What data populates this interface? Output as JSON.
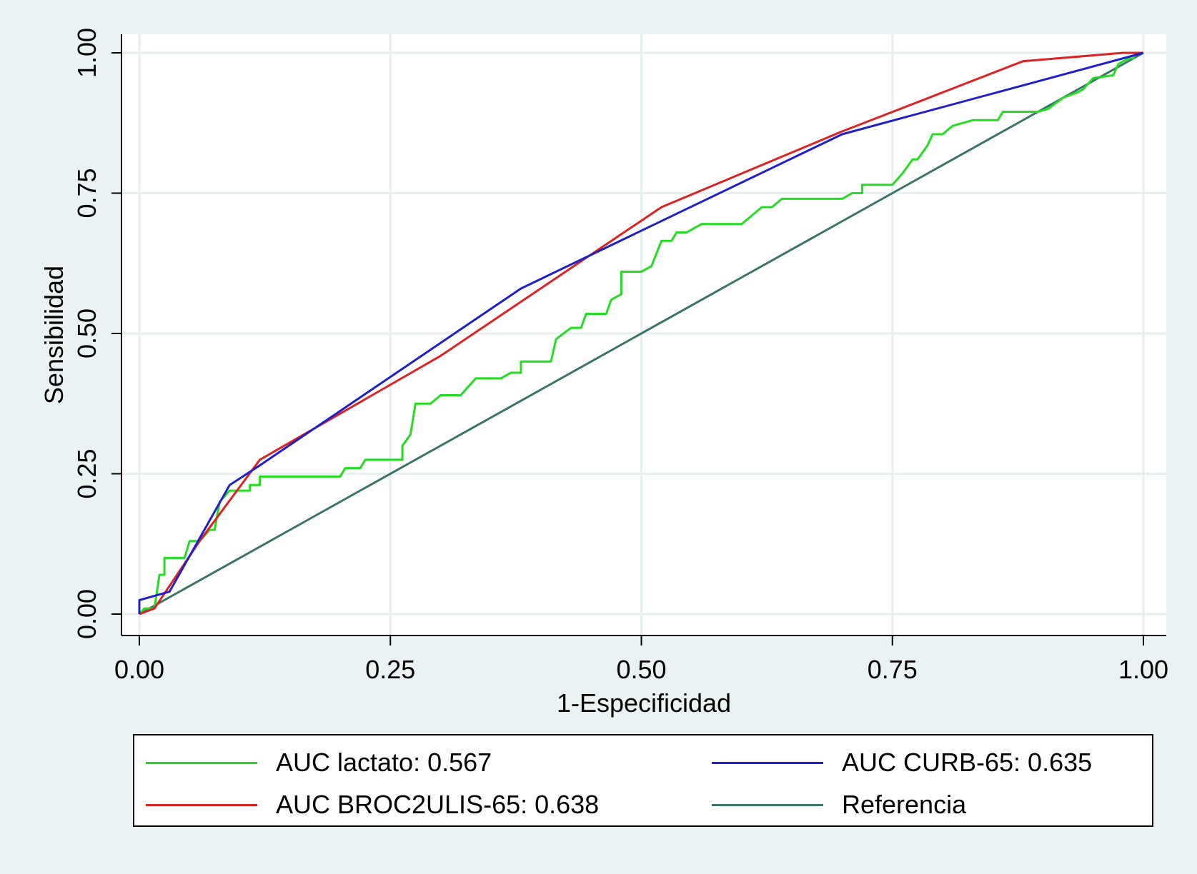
{
  "chart_data": {
    "type": "line",
    "xlabel": "1-Especificidad",
    "ylabel": "Sensibilidad",
    "xlim": [
      0,
      1
    ],
    "ylim": [
      0,
      1
    ],
    "xticks": [
      "0.00",
      "0.25",
      "0.50",
      "0.75",
      "1.00"
    ],
    "yticks": [
      "0.00",
      "0.25",
      "0.50",
      "0.75",
      "1.00"
    ],
    "grid": true,
    "legend_position": "bottom",
    "series": [
      {
        "name": "AUC lactato: 0.567",
        "color": "#22dd22",
        "points": [
          [
            0,
            0
          ],
          [
            0.005,
            0.01
          ],
          [
            0.015,
            0.01
          ],
          [
            0.02,
            0.07
          ],
          [
            0.025,
            0.07
          ],
          [
            0.025,
            0.1
          ],
          [
            0.045,
            0.1
          ],
          [
            0.05,
            0.13
          ],
          [
            0.06,
            0.13
          ],
          [
            0.065,
            0.14
          ],
          [
            0.07,
            0.15
          ],
          [
            0.075,
            0.15
          ],
          [
            0.08,
            0.2
          ],
          [
            0.085,
            0.21
          ],
          [
            0.09,
            0.22
          ],
          [
            0.11,
            0.22
          ],
          [
            0.11,
            0.23
          ],
          [
            0.12,
            0.23
          ],
          [
            0.12,
            0.245
          ],
          [
            0.2,
            0.245
          ],
          [
            0.205,
            0.26
          ],
          [
            0.22,
            0.26
          ],
          [
            0.225,
            0.275
          ],
          [
            0.262,
            0.275
          ],
          [
            0.262,
            0.3
          ],
          [
            0.27,
            0.32
          ],
          [
            0.275,
            0.375
          ],
          [
            0.29,
            0.375
          ],
          [
            0.3,
            0.39
          ],
          [
            0.32,
            0.39
          ],
          [
            0.33,
            0.41
          ],
          [
            0.335,
            0.42
          ],
          [
            0.36,
            0.42
          ],
          [
            0.37,
            0.43
          ],
          [
            0.38,
            0.43
          ],
          [
            0.38,
            0.45
          ],
          [
            0.41,
            0.45
          ],
          [
            0.415,
            0.49
          ],
          [
            0.43,
            0.51
          ],
          [
            0.44,
            0.51
          ],
          [
            0.445,
            0.535
          ],
          [
            0.465,
            0.535
          ],
          [
            0.47,
            0.56
          ],
          [
            0.48,
            0.57
          ],
          [
            0.48,
            0.61
          ],
          [
            0.5,
            0.61
          ],
          [
            0.51,
            0.62
          ],
          [
            0.52,
            0.665
          ],
          [
            0.53,
            0.665
          ],
          [
            0.535,
            0.68
          ],
          [
            0.545,
            0.68
          ],
          [
            0.56,
            0.695
          ],
          [
            0.6,
            0.695
          ],
          [
            0.61,
            0.71
          ],
          [
            0.62,
            0.725
          ],
          [
            0.63,
            0.725
          ],
          [
            0.64,
            0.74
          ],
          [
            0.7,
            0.74
          ],
          [
            0.71,
            0.75
          ],
          [
            0.72,
            0.75
          ],
          [
            0.72,
            0.765
          ],
          [
            0.75,
            0.765
          ],
          [
            0.76,
            0.785
          ],
          [
            0.77,
            0.81
          ],
          [
            0.775,
            0.81
          ],
          [
            0.785,
            0.835
          ],
          [
            0.79,
            0.855
          ],
          [
            0.8,
            0.855
          ],
          [
            0.81,
            0.87
          ],
          [
            0.83,
            0.88
          ],
          [
            0.855,
            0.88
          ],
          [
            0.86,
            0.895
          ],
          [
            0.895,
            0.895
          ],
          [
            0.905,
            0.9
          ],
          [
            0.92,
            0.92
          ],
          [
            0.935,
            0.93
          ],
          [
            0.94,
            0.935
          ],
          [
            0.945,
            0.945
          ],
          [
            0.95,
            0.955
          ],
          [
            0.97,
            0.96
          ],
          [
            0.975,
            0.98
          ],
          [
            0.985,
            0.99
          ],
          [
            0.99,
            0.99
          ],
          [
            0.992,
            1.0
          ],
          [
            1,
            1
          ]
        ]
      },
      {
        "name": "AUC CURB-65: 0.635",
        "color": "#1f1fcc",
        "points": [
          [
            0,
            0
          ],
          [
            0,
            0.025
          ],
          [
            0.03,
            0.04
          ],
          [
            0.09,
            0.23
          ],
          [
            0.12,
            0.265
          ],
          [
            0.38,
            0.58
          ],
          [
            0.7,
            0.855
          ],
          [
            1,
            1
          ]
        ]
      },
      {
        "name": "AUC BROC2ULIS-65: 0.638",
        "color": "#dd2222",
        "points": [
          [
            0,
            0
          ],
          [
            0.015,
            0.01
          ],
          [
            0.03,
            0.05
          ],
          [
            0.06,
            0.13
          ],
          [
            0.12,
            0.275
          ],
          [
            0.3,
            0.46
          ],
          [
            0.52,
            0.725
          ],
          [
            0.7,
            0.86
          ],
          [
            0.88,
            0.985
          ],
          [
            0.98,
            1
          ],
          [
            1,
            1
          ]
        ]
      },
      {
        "name": "Referencia",
        "color": "#3b7568",
        "points": [
          [
            0,
            0
          ],
          [
            1,
            1
          ]
        ]
      }
    ]
  }
}
